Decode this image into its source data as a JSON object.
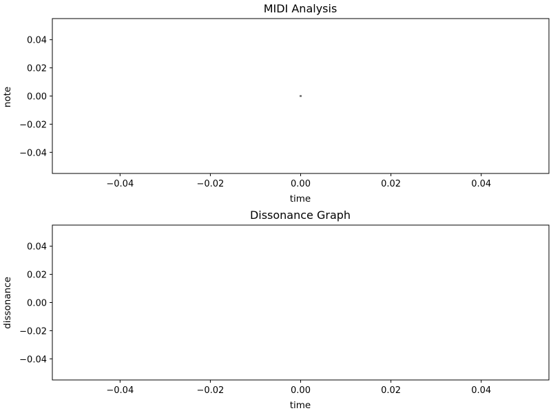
{
  "chart_data": [
    {
      "type": "scatter",
      "title": "MIDI Analysis",
      "xlabel": "time",
      "ylabel": "note",
      "xlim": [
        -0.055,
        0.055
      ],
      "ylim": [
        -0.055,
        0.055
      ],
      "xticks": [
        -0.04,
        -0.02,
        0.0,
        0.02,
        0.04
      ],
      "yticks": [
        -0.04,
        -0.02,
        0.0,
        0.02,
        0.04
      ],
      "xtick_labels": [
        "−0.04",
        "−0.02",
        "0.00",
        "0.02",
        "0.04"
      ],
      "ytick_labels": [
        "−0.04",
        "−0.02",
        "0.00",
        "0.02",
        "0.04"
      ],
      "series": [
        {
          "x": [
            0.0
          ],
          "y": [
            0.0
          ],
          "color": "#808080"
        }
      ],
      "grid": false
    },
    {
      "type": "line",
      "title": "Dissonance Graph",
      "xlabel": "time",
      "ylabel": "dissonance",
      "xlim": [
        -0.055,
        0.055
      ],
      "ylim": [
        -0.055,
        0.055
      ],
      "xticks": [
        -0.04,
        -0.02,
        0.0,
        0.02,
        0.04
      ],
      "yticks": [
        -0.04,
        -0.02,
        0.0,
        0.02,
        0.04
      ],
      "xtick_labels": [
        "−0.04",
        "−0.02",
        "0.00",
        "0.02",
        "0.04"
      ],
      "ytick_labels": [
        "−0.04",
        "−0.02",
        "0.00",
        "0.02",
        "0.04"
      ],
      "series": [],
      "grid": false
    }
  ]
}
